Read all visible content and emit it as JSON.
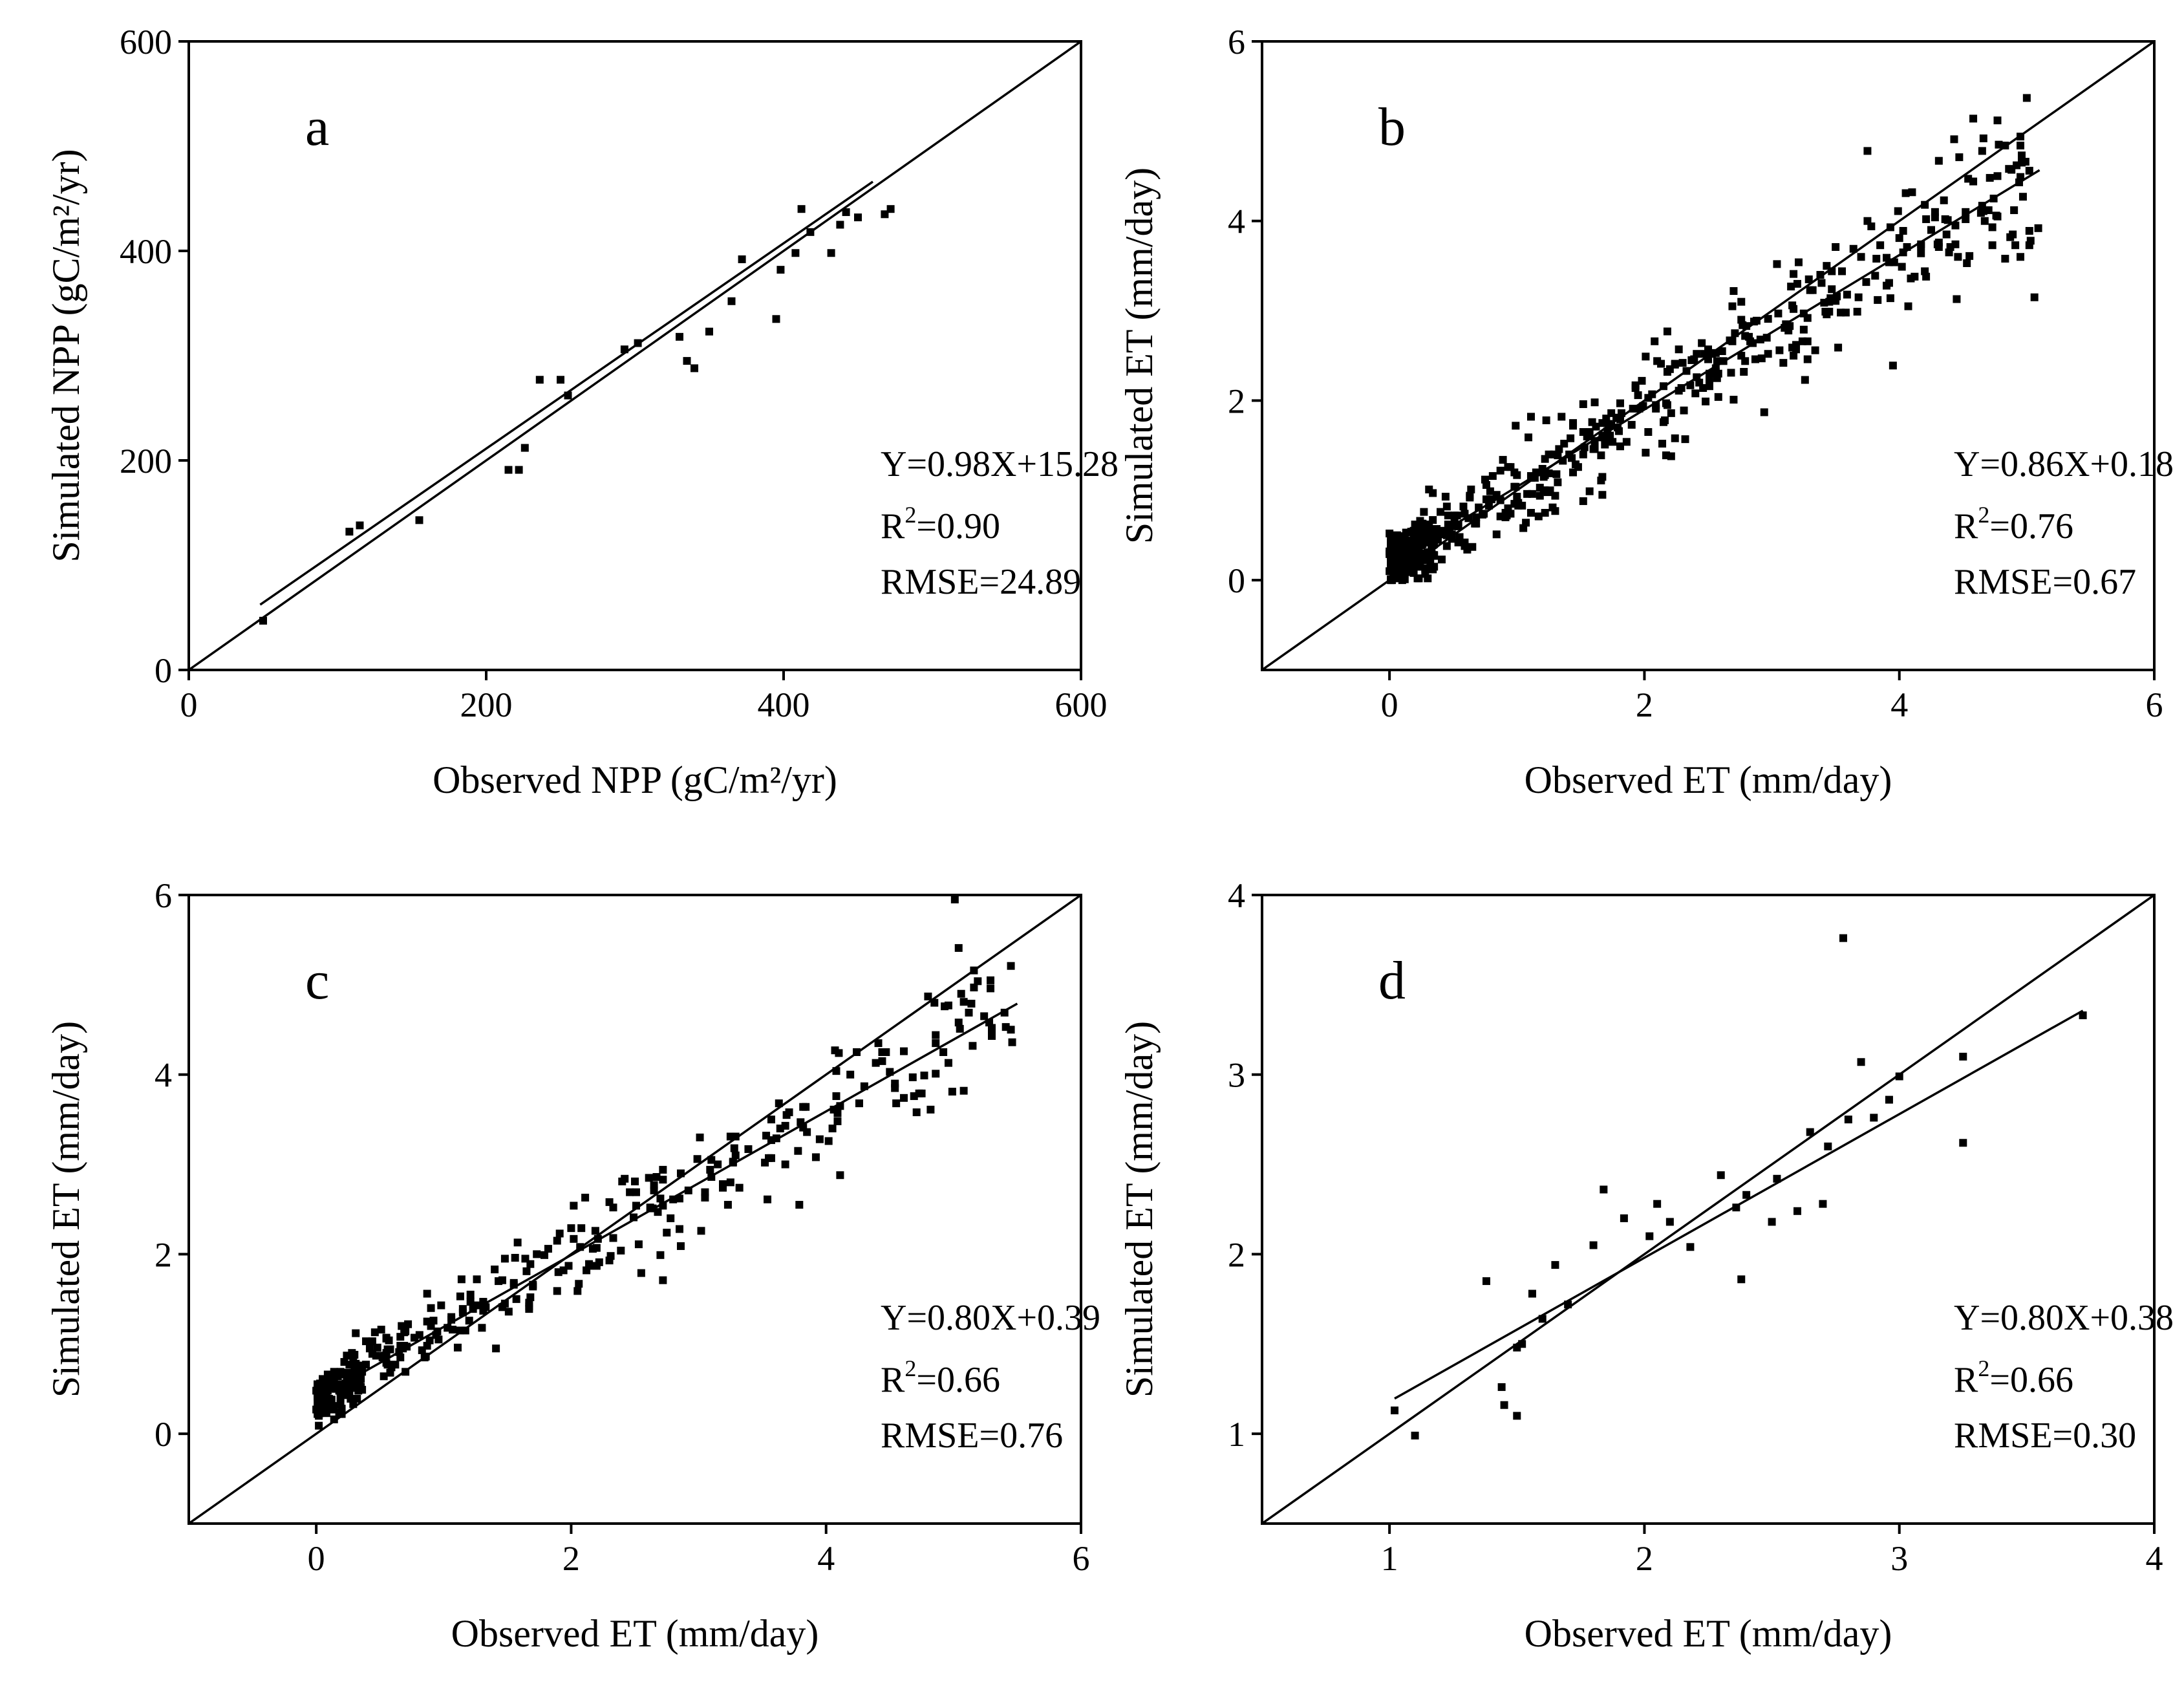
{
  "chart_data": [
    {
      "id": "a",
      "type": "scatter",
      "panel_label": "a",
      "xlabel": "Observed NPP (gC/m²/yr)",
      "ylabel": "Simulated NPP (gC/m²/yr)",
      "xlim": [
        0,
        600
      ],
      "ylim": [
        0,
        600
      ],
      "xticks": [
        0,
        200,
        400,
        600
      ],
      "yticks": [
        0,
        200,
        400,
        600
      ],
      "xtick_labels": [
        "0",
        "200",
        "400",
        "600"
      ],
      "ytick_labels": [
        "0",
        "200",
        "400",
        "600"
      ],
      "fit": {
        "slope": 0.98,
        "intercept": 15.28,
        "x_range": [
          48,
          460
        ]
      },
      "one_to_one": true,
      "stats": {
        "equation": "Y=0.98X+15.28",
        "r2_label": "R",
        "r2_value": "=0.90",
        "rmse": "RMSE=24.89"
      },
      "x": [
        50,
        108,
        115,
        155,
        215,
        222,
        226,
        236,
        250,
        255,
        293,
        302,
        330,
        335,
        340,
        350,
        365,
        372,
        395,
        398,
        408,
        412,
        418,
        432,
        438,
        442,
        450,
        468,
        472
      ],
      "y": [
        47,
        132,
        138,
        143,
        191,
        191,
        212,
        277,
        277,
        262,
        306,
        312,
        318,
        295,
        288,
        323,
        352,
        392,
        335,
        382,
        398,
        440,
        418,
        398,
        425,
        437,
        432,
        435,
        440
      ]
    },
    {
      "id": "b",
      "type": "scatter",
      "panel_label": "b",
      "xlabel": "Observed ET (mm/day)",
      "ylabel": "Simulated ET (mm/day)",
      "xlim": [
        -1,
        6
      ],
      "ylim": [
        -1,
        6
      ],
      "xticks": [
        0,
        2,
        4,
        6
      ],
      "yticks": [
        0,
        2,
        4,
        6
      ],
      "xtick_labels": [
        "0",
        "2",
        "4",
        "6"
      ],
      "ytick_labels": [
        "0",
        "2",
        "4",
        "6"
      ],
      "fit": {
        "slope": 0.86,
        "intercept": 0.18,
        "x_range": [
          0,
          5.1
        ]
      },
      "one_to_one": true,
      "stats": {
        "equation": "Y=0.86X+0.18",
        "r2_label": "R",
        "r2_value": "=0.76",
        "rmse": "RMSE=0.67"
      },
      "n_points": 600,
      "spread": 0.55,
      "seed": 11
    },
    {
      "id": "c",
      "type": "scatter",
      "panel_label": "c",
      "xlabel": "Observed ET (mm/day)",
      "ylabel": "Simulated ET (mm/day)",
      "xlim": [
        -1,
        6
      ],
      "ylim": [
        -1,
        6
      ],
      "xticks": [
        0,
        2,
        4,
        6
      ],
      "yticks": [
        0,
        2,
        4,
        6
      ],
      "xtick_labels": [
        "0",
        "2",
        "4",
        "6"
      ],
      "ytick_labels": [
        "0",
        "2",
        "4",
        "6"
      ],
      "fit": {
        "slope": 0.8,
        "intercept": 0.39,
        "x_range": [
          0,
          5.5
        ]
      },
      "one_to_one": true,
      "stats": {
        "equation": "Y=0.80X+0.39",
        "r2_label": "R",
        "r2_value": "=0.66",
        "rmse": "RMSE=0.76"
      },
      "n_points": 420,
      "spread": 0.5,
      "seed": 23
    },
    {
      "id": "d",
      "type": "scatter",
      "panel_label": "d",
      "xlabel": "Observed ET (mm/day)",
      "ylabel": "Simulated ET (mm/day)",
      "xlim": [
        0.5,
        4
      ],
      "ylim": [
        0.5,
        4
      ],
      "xticks": [
        1,
        2,
        3,
        4
      ],
      "yticks": [
        1,
        2,
        3,
        4
      ],
      "xtick_labels": [
        "1",
        "2",
        "3",
        "4"
      ],
      "ytick_labels": [
        "1",
        "2",
        "3",
        "4"
      ],
      "fit": {
        "slope": 0.8,
        "intercept": 0.38,
        "x_range": [
          1.02,
          3.72
        ]
      },
      "one_to_one": true,
      "stats": {
        "equation": "Y=0.80X+0.38",
        "r2_label": "R",
        "r2_value": "=0.66",
        "rmse": "RMSE=0.30"
      },
      "x": [
        1.02,
        1.1,
        1.38,
        1.44,
        1.45,
        1.5,
        1.5,
        1.52,
        1.56,
        1.6,
        1.65,
        1.7,
        1.8,
        1.84,
        1.92,
        2.02,
        2.05,
        2.1,
        2.18,
        2.3,
        2.36,
        2.38,
        2.4,
        2.5,
        2.52,
        2.6,
        2.65,
        2.7,
        2.72,
        2.78,
        2.8,
        2.85,
        2.9,
        2.96,
        3.0,
        3.25,
        3.25,
        3.72
      ],
      "y": [
        1.13,
        0.99,
        1.85,
        1.26,
        1.16,
        1.48,
        1.1,
        1.5,
        1.78,
        1.64,
        1.94,
        1.72,
        2.05,
        2.36,
        2.2,
        2.1,
        2.28,
        2.18,
        2.04,
        2.44,
        2.26,
        1.86,
        2.33,
        2.18,
        2.42,
        2.24,
        2.68,
        2.28,
        2.6,
        3.76,
        2.75,
        3.07,
        2.76,
        2.86,
        2.99,
        3.1,
        2.62,
        3.33
      ]
    }
  ]
}
